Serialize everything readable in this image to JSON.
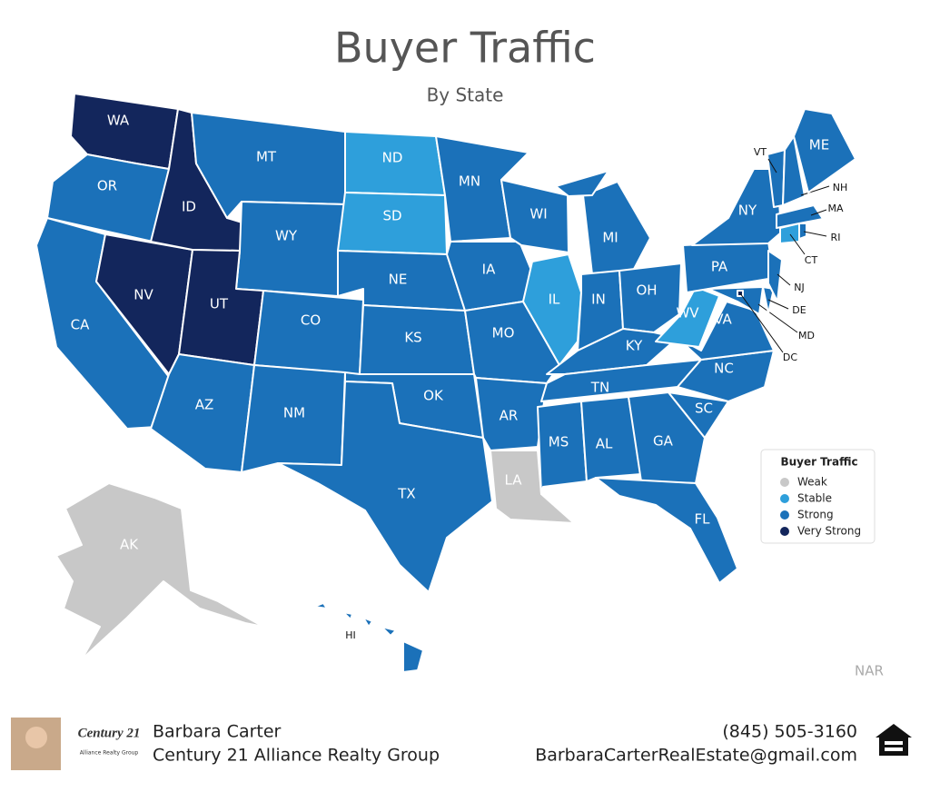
{
  "header": {
    "title": "Buyer Traffic",
    "subtitle": "By State"
  },
  "legend": {
    "title": "Buyer Traffic",
    "items": [
      {
        "name": "Weak",
        "color": "#c8c8c8"
      },
      {
        "name": "Stable",
        "color": "#2e9fdb"
      },
      {
        "name": "Strong",
        "color": "#1b71b9"
      },
      {
        "name": "Very Strong",
        "color": "#13265c"
      }
    ]
  },
  "states": [
    {
      "abbr": "WA",
      "level": "Very Strong"
    },
    {
      "abbr": "OR",
      "level": "Strong"
    },
    {
      "abbr": "CA",
      "level": "Strong"
    },
    {
      "abbr": "NV",
      "level": "Very Strong"
    },
    {
      "abbr": "ID",
      "level": "Very Strong"
    },
    {
      "abbr": "MT",
      "level": "Strong"
    },
    {
      "abbr": "WY",
      "level": "Strong"
    },
    {
      "abbr": "UT",
      "level": "Very Strong"
    },
    {
      "abbr": "AZ",
      "level": "Strong"
    },
    {
      "abbr": "CO",
      "level": "Strong"
    },
    {
      "abbr": "NM",
      "level": "Strong"
    },
    {
      "abbr": "ND",
      "level": "Stable"
    },
    {
      "abbr": "SD",
      "level": "Stable"
    },
    {
      "abbr": "NE",
      "level": "Strong"
    },
    {
      "abbr": "KS",
      "level": "Strong"
    },
    {
      "abbr": "OK",
      "level": "Strong"
    },
    {
      "abbr": "TX",
      "level": "Strong"
    },
    {
      "abbr": "MN",
      "level": "Strong"
    },
    {
      "abbr": "IA",
      "level": "Strong"
    },
    {
      "abbr": "MO",
      "level": "Strong"
    },
    {
      "abbr": "AR",
      "level": "Strong"
    },
    {
      "abbr": "LA",
      "level": "Weak"
    },
    {
      "abbr": "WI",
      "level": "Strong"
    },
    {
      "abbr": "IL",
      "level": "Stable"
    },
    {
      "abbr": "MI",
      "level": "Strong"
    },
    {
      "abbr": "IN",
      "level": "Strong"
    },
    {
      "abbr": "OH",
      "level": "Strong"
    },
    {
      "abbr": "KY",
      "level": "Strong"
    },
    {
      "abbr": "TN",
      "level": "Strong"
    },
    {
      "abbr": "MS",
      "level": "Strong"
    },
    {
      "abbr": "AL",
      "level": "Strong"
    },
    {
      "abbr": "GA",
      "level": "Strong"
    },
    {
      "abbr": "FL",
      "level": "Strong"
    },
    {
      "abbr": "SC",
      "level": "Strong"
    },
    {
      "abbr": "NC",
      "level": "Strong"
    },
    {
      "abbr": "VA",
      "level": "Strong"
    },
    {
      "abbr": "WV",
      "level": "Stable"
    },
    {
      "abbr": "PA",
      "level": "Strong"
    },
    {
      "abbr": "NY",
      "level": "Strong"
    },
    {
      "abbr": "MD",
      "level": "Strong"
    },
    {
      "abbr": "DE",
      "level": "Strong"
    },
    {
      "abbr": "NJ",
      "level": "Strong"
    },
    {
      "abbr": "CT",
      "level": "Stable"
    },
    {
      "abbr": "RI",
      "level": "Strong"
    },
    {
      "abbr": "MA",
      "level": "Strong"
    },
    {
      "abbr": "VT",
      "level": "Strong"
    },
    {
      "abbr": "NH",
      "level": "Strong"
    },
    {
      "abbr": "ME",
      "level": "Strong"
    },
    {
      "abbr": "DC",
      "level": "Very Strong"
    },
    {
      "abbr": "AK",
      "level": "Weak"
    },
    {
      "abbr": "HI",
      "level": "Strong"
    }
  ],
  "source": "NAR",
  "footer": {
    "logo": "Century 21",
    "logo_sub": "Alliance Realty Group",
    "agent": "Barbara Carter",
    "company": "Century 21 Alliance Realty Group",
    "phone": "(845) 505-3160",
    "email": "BarbaraCarterRealEstate@gmail.com"
  }
}
